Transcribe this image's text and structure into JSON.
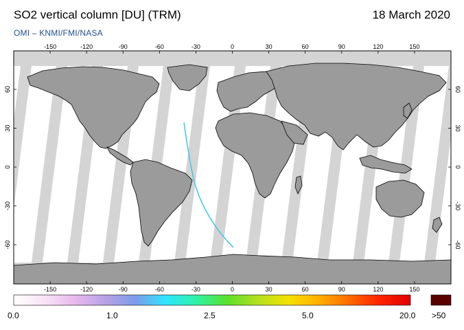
{
  "header": {
    "title": "SO2 vertical column [DU] (TRM)",
    "date": "18 March 2020",
    "credit": "OMI  –  KNMI/FMI/NASA"
  },
  "map": {
    "longitude_ticks": [
      "-150",
      "-120",
      "-90",
      "-60",
      "-30",
      "0",
      "30",
      "60",
      "90",
      "120",
      "150"
    ],
    "latitude_ticks": [
      "60",
      "30",
      "0",
      "-30",
      "-60"
    ],
    "colors": {
      "land": "#9b9b9b",
      "swath_gap": "#d4d4d4",
      "no_data": "#d4d4d4",
      "background": "#ffffff",
      "coast": "#000000",
      "trajectory_start": "#3ec8e6",
      "trajectory_end": "#00e5c0"
    }
  },
  "colorbar": {
    "labels": [
      "0.0",
      "1.0",
      "2.5",
      "5.0",
      "20.0",
      ">50"
    ],
    "stops": [
      "#ffffff",
      "#f8e4f6",
      "#e9b8ec",
      "#b7a2e6",
      "#7c9ce9",
      "#2ee6ff",
      "#2ff2a4",
      "#5be02a",
      "#b4e11e",
      "#f4e200",
      "#ffb000",
      "#ff6a00",
      "#ff2200",
      "#e00000"
    ],
    "overflow_color": "#5a0000"
  }
}
